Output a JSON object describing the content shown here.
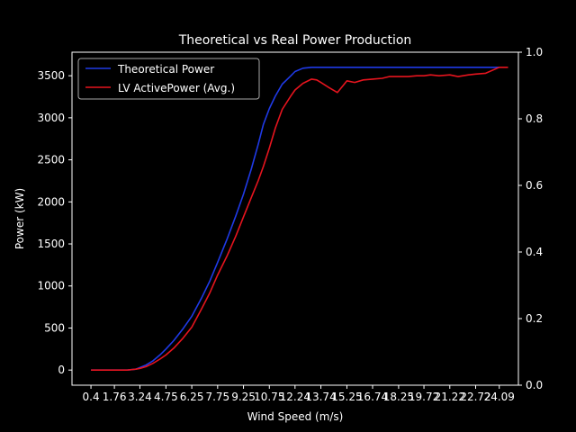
{
  "chart_data": {
    "type": "line",
    "title": "Theoretical vs Real Power Production",
    "xlabel": "Wind Speed (m/s)",
    "ylabel": "Power (kW)",
    "x_tick_labels": [
      "0.4",
      "1.76",
      "3.24",
      "4.75",
      "6.25",
      "7.75",
      "9.25",
      "10.75",
      "12.24",
      "13.74",
      "15.25",
      "16.74",
      "18.25",
      "19.72",
      "21.22",
      "22.72",
      "24.09"
    ],
    "x_tick_positions": [
      0.4,
      1.76,
      3.24,
      4.75,
      6.25,
      7.75,
      9.25,
      10.75,
      12.24,
      13.74,
      15.25,
      16.74,
      18.25,
      19.72,
      21.22,
      22.72,
      24.09
    ],
    "xlim": [
      -0.7,
      25.2
    ],
    "ylim": [
      -180,
      3780
    ],
    "y_ticks": [
      0,
      500,
      1000,
      1500,
      2000,
      2500,
      3000,
      3500
    ],
    "y2lim": [
      0,
      1.0
    ],
    "y2_ticks": [
      "0.0",
      "0.2",
      "0.4",
      "0.6",
      "0.8",
      "1.0"
    ],
    "legend_position": "top-left",
    "grid": false,
    "series": [
      {
        "name": "Theoretical Power",
        "color": "#1f3ae6",
        "x": [
          0.4,
          1.0,
          1.76,
          2.5,
          3.0,
          3.24,
          3.6,
          4.0,
          4.4,
          4.75,
          5.2,
          5.7,
          6.25,
          6.8,
          7.3,
          7.75,
          8.3,
          8.8,
          9.25,
          9.7,
          10.1,
          10.4,
          10.75,
          11.1,
          11.5,
          12.0,
          12.24,
          12.7,
          13.2,
          13.74,
          14.5,
          15.25,
          16.74,
          18.25,
          19.72,
          21.22,
          22.72,
          24.09
        ],
        "y": [
          0,
          0,
          0,
          0,
          10,
          30,
          60,
          110,
          180,
          250,
          350,
          480,
          640,
          850,
          1060,
          1280,
          1560,
          1830,
          2090,
          2390,
          2680,
          2920,
          3110,
          3260,
          3400,
          3500,
          3550,
          3590,
          3600,
          3600,
          3600,
          3600,
          3600,
          3600,
          3600,
          3600,
          3600,
          3600
        ]
      },
      {
        "name": "LV ActivePower (Avg.)",
        "color": "#e6141e",
        "x": [
          0.4,
          1.0,
          1.76,
          2.5,
          3.0,
          3.24,
          3.6,
          4.0,
          4.4,
          4.75,
          5.2,
          5.7,
          6.25,
          6.8,
          7.3,
          7.75,
          8.3,
          8.8,
          9.25,
          9.7,
          10.1,
          10.4,
          10.75,
          11.1,
          11.5,
          12.0,
          12.24,
          12.7,
          13.2,
          13.5,
          13.74,
          14.2,
          14.7,
          15.25,
          15.7,
          16.2,
          16.74,
          17.3,
          17.7,
          18.25,
          18.8,
          19.3,
          19.72,
          20.1,
          20.6,
          21.22,
          21.7,
          22.3,
          22.72,
          23.3,
          24.09,
          24.6
        ],
        "y": [
          0,
          0,
          0,
          0,
          10,
          20,
          40,
          80,
          130,
          180,
          260,
          370,
          510,
          720,
          920,
          1130,
          1360,
          1590,
          1820,
          2050,
          2250,
          2420,
          2640,
          2880,
          3100,
          3260,
          3330,
          3410,
          3460,
          3450,
          3420,
          3360,
          3300,
          3440,
          3420,
          3450,
          3460,
          3470,
          3490,
          3490,
          3490,
          3500,
          3500,
          3510,
          3500,
          3510,
          3490,
          3510,
          3520,
          3530,
          3600,
          3600
        ]
      }
    ]
  }
}
